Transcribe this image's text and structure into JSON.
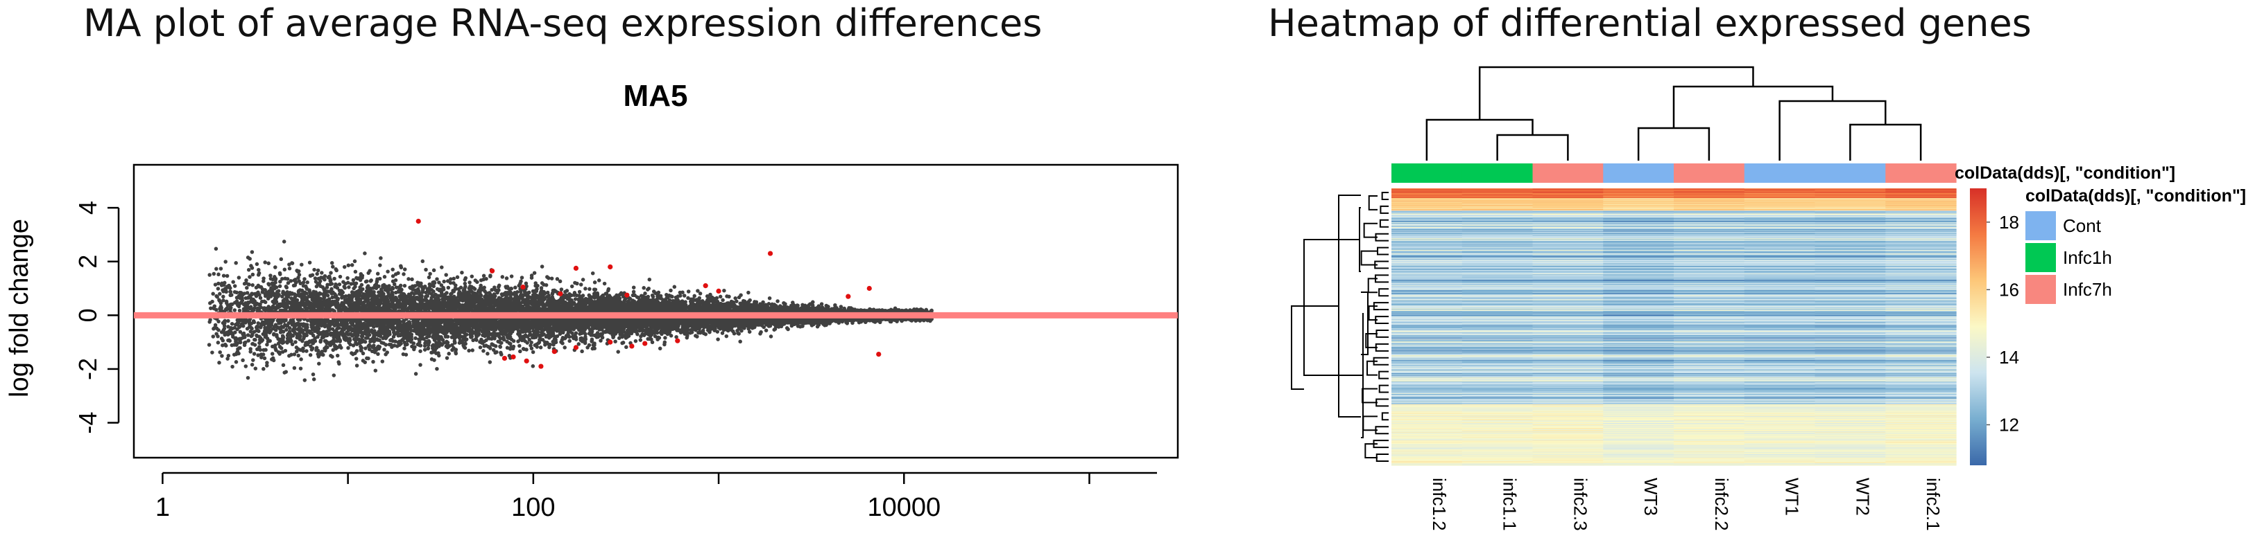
{
  "figures": {
    "left_title": "MA plot of average RNA-seq expression differences",
    "right_title": "Heatmap of differential expressed genes"
  },
  "chart_data": [
    {
      "type": "scatter",
      "title": "MA5",
      "xlabel": "",
      "ylabel": "log fold change",
      "x_scale": "log10",
      "xlim": [
        0.7,
        300000
      ],
      "ylim": [
        -5.3,
        5.6
      ],
      "x_ticks": [
        1,
        100,
        10000
      ],
      "x_tick_labels": [
        "1",
        "100",
        "10000"
      ],
      "y_ticks": [
        -4,
        -2,
        0,
        2,
        4
      ],
      "y_tick_labels": [
        "-4",
        "-2",
        "0",
        "2",
        "4"
      ],
      "reference_line": {
        "y": 0,
        "color": "#ff8080"
      },
      "point_color": "#404040",
      "highlight_color": "#e01010",
      "background_point_count": 14000,
      "significant_points": [
        {
          "x": 24,
          "y": 3.5
        },
        {
          "x": 1900,
          "y": 2.3
        },
        {
          "x": 260,
          "y": 1.8
        },
        {
          "x": 170,
          "y": 1.75
        },
        {
          "x": 60,
          "y": 1.65
        },
        {
          "x": 850,
          "y": 1.1
        },
        {
          "x": 88,
          "y": 1.05
        },
        {
          "x": 6500,
          "y": 1.0
        },
        {
          "x": 1000,
          "y": 0.9
        },
        {
          "x": 140,
          "y": 0.8
        },
        {
          "x": 320,
          "y": 0.75
        },
        {
          "x": 5000,
          "y": 0.7
        },
        {
          "x": 78,
          "y": -1.55
        },
        {
          "x": 92,
          "y": -1.7
        },
        {
          "x": 70,
          "y": -1.6
        },
        {
          "x": 110,
          "y": -1.9
        },
        {
          "x": 260,
          "y": -1.0
        },
        {
          "x": 340,
          "y": -1.15
        },
        {
          "x": 400,
          "y": -1.05
        },
        {
          "x": 170,
          "y": -1.2
        },
        {
          "x": 7300,
          "y": -1.45
        },
        {
          "x": 130,
          "y": -1.35
        },
        {
          "x": 600,
          "y": -0.95
        }
      ]
    },
    {
      "type": "heatmap",
      "columns": [
        "infc1.2",
        "infc1.1",
        "infc2.3",
        "WT3",
        "infc2.2",
        "WT1",
        "WT2",
        "infc2.1"
      ],
      "column_condition": [
        "Infc1h",
        "Infc1h",
        "Infc7h",
        "Cont",
        "Infc7h",
        "Cont",
        "Cont",
        "Infc7h"
      ],
      "annotation_title": "colData(dds)[, \"condition\"]",
      "legend_title": "colData(dds)[, \"condition\"]",
      "legend": [
        {
          "label": "Cont",
          "color": "#7eb3ef"
        },
        {
          "label": "Infc1h",
          "color": "#00c853"
        },
        {
          "label": "Infc7h",
          "color": "#f8877f"
        }
      ],
      "color_scale": {
        "min": 10.8,
        "max": 19.0,
        "ticks": [
          12,
          14,
          16,
          18
        ],
        "colors": [
          "#3a68a9",
          "#78aed0",
          "#cde4ef",
          "#fbf8c6",
          "#fdc779",
          "#f47a42",
          "#d73027"
        ]
      },
      "row_count": 400
    }
  ]
}
